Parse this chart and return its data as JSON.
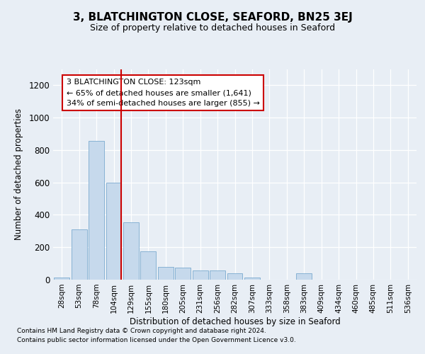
{
  "title": "3, BLATCHINGTON CLOSE, SEAFORD, BN25 3EJ",
  "subtitle": "Size of property relative to detached houses in Seaford",
  "xlabel": "Distribution of detached houses by size in Seaford",
  "ylabel": "Number of detached properties",
  "bar_labels": [
    "28sqm",
    "53sqm",
    "78sqm",
    "104sqm",
    "129sqm",
    "155sqm",
    "180sqm",
    "205sqm",
    "231sqm",
    "256sqm",
    "282sqm",
    "307sqm",
    "333sqm",
    "358sqm",
    "383sqm",
    "409sqm",
    "434sqm",
    "460sqm",
    "485sqm",
    "511sqm",
    "536sqm"
  ],
  "bar_values": [
    15,
    310,
    855,
    600,
    355,
    175,
    80,
    75,
    55,
    55,
    40,
    15,
    0,
    0,
    40,
    0,
    0,
    0,
    0,
    0,
    0
  ],
  "bar_color": "#c6d9ec",
  "bar_edgecolor": "#7baacf",
  "vline_index": 3,
  "vline_color": "#cc0000",
  "annotation_text": "3 BLATCHINGTON CLOSE: 123sqm\n← 65% of detached houses are smaller (1,641)\n34% of semi-detached houses are larger (855) →",
  "annotation_box_edgecolor": "#cc0000",
  "ylim": [
    0,
    1300
  ],
  "yticks": [
    0,
    200,
    400,
    600,
    800,
    1000,
    1200
  ],
  "bg_color": "#e8eef5",
  "footer_line1": "Contains HM Land Registry data © Crown copyright and database right 2024.",
  "footer_line2": "Contains public sector information licensed under the Open Government Licence v3.0."
}
